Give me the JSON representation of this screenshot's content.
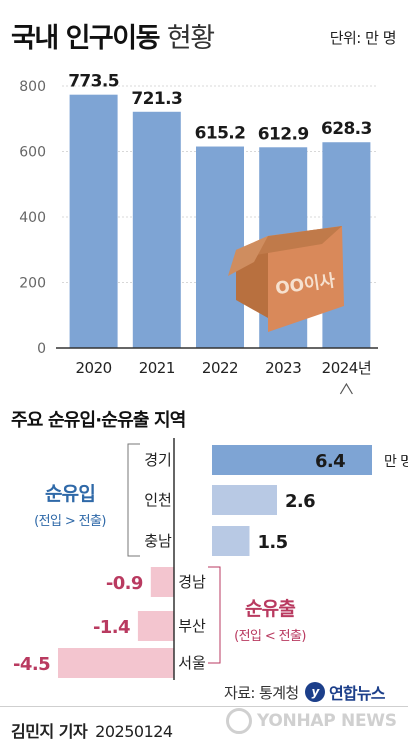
{
  "header": {
    "title_bold": "국내 인구이동",
    "title_light": "현황",
    "unit": "단위: 만 명"
  },
  "box_label": "OO이사",
  "chart_data": [
    {
      "type": "bar",
      "categories": [
        "2020",
        "2021",
        "2022",
        "2023",
        "2024년"
      ],
      "values": [
        773.5,
        721.3,
        615.2,
        612.9,
        628.3
      ],
      "data_labels": [
        "773.5",
        "721.3",
        "615.2",
        "612.9",
        "628.3"
      ],
      "yticks": [
        0,
        200,
        400,
        600,
        800
      ],
      "ylim": [
        0,
        800
      ],
      "grid": true,
      "bar_color": "#7ea4d4",
      "annotation": "2024년 marked with a break caret beneath its label"
    },
    {
      "type": "bar",
      "orientation": "horizontal",
      "title": "주요 순유입·순유출 지역",
      "categories": [
        "경기",
        "인천",
        "충남",
        "경남",
        "부산",
        "서울"
      ],
      "values": [
        6.4,
        2.6,
        1.5,
        -0.9,
        -1.4,
        -4.5
      ],
      "data_labels": [
        "6.4",
        "2.6",
        "1.5",
        "-0.9",
        "-1.4",
        "-4.5"
      ],
      "value_unit_suffix": "만 명",
      "groups": [
        {
          "name": "순유입",
          "note": "(전입 > 전출)",
          "color": "#2f69a8",
          "bar_color": "#b8c9e4",
          "categories": [
            "경기",
            "인천",
            "충남"
          ]
        },
        {
          "name": "순유출",
          "note": "(전입 < 전출)",
          "color": "#b93a60",
          "bar_color": "#f3c5cf",
          "categories": [
            "경남",
            "부산",
            "서울"
          ]
        }
      ],
      "highlight_bar_color": "#7ea4d4"
    }
  ],
  "footer": {
    "source": "자료: 통계청",
    "agency": "연합뉴스",
    "byline": "김민지 기자",
    "date": "20250124",
    "watermark": "YONHAP NEWS"
  }
}
